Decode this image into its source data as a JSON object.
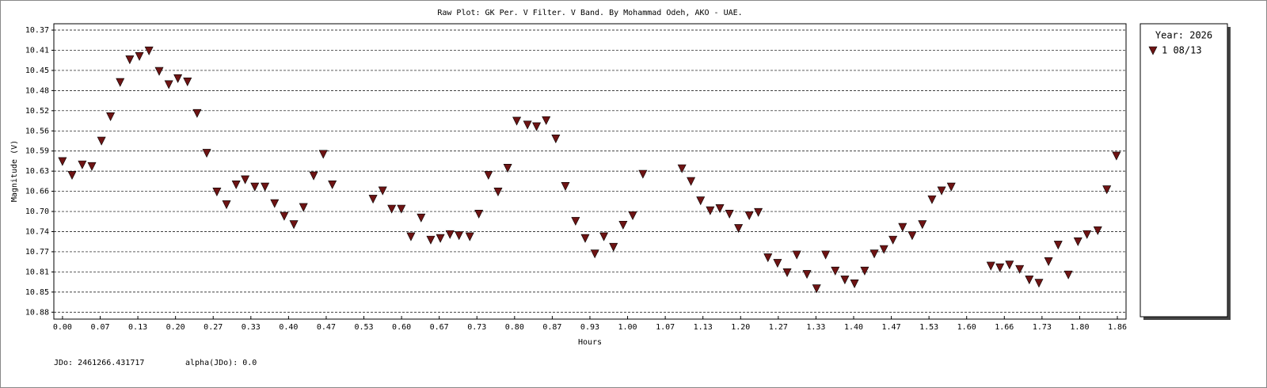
{
  "chart_data": {
    "type": "scatter",
    "title": "Raw Plot: GK Per. V Filter. V Band. By Mohammad Odeh, AKO - UAE.",
    "x_label": "Hours",
    "y_label": "Magnitude (V)",
    "legend_title": "Year: 2026",
    "legend_position": "right",
    "annotations": [
      "JDo: 2461266.431717",
      "alpha(JDo): 0.0"
    ],
    "grid": true,
    "y_inverted": true,
    "xlim": [
      -0.0152,
      1.88
    ],
    "ylim": [
      10.362,
      10.896
    ],
    "xticks": [
      {
        "value": 0.0001,
        "label": "0.00"
      },
      {
        "value": 0.0667,
        "label": "0.07"
      },
      {
        "value": 0.13328,
        "label": "0.13"
      },
      {
        "value": 0.19987,
        "label": "0.20"
      },
      {
        "value": 0.26646,
        "label": "0.27"
      },
      {
        "value": 0.33305,
        "label": "0.33"
      },
      {
        "value": 0.39964,
        "label": "0.40"
      },
      {
        "value": 0.46623,
        "label": "0.47"
      },
      {
        "value": 0.53282,
        "label": "0.53"
      },
      {
        "value": 0.59941,
        "label": "0.60"
      },
      {
        "value": 0.666,
        "label": "0.67"
      },
      {
        "value": 0.73259,
        "label": "0.73"
      },
      {
        "value": 0.79918,
        "label": "0.80"
      },
      {
        "value": 0.86577,
        "label": "0.87"
      },
      {
        "value": 0.93236,
        "label": "0.93"
      },
      {
        "value": 0.99895,
        "label": "1.00"
      },
      {
        "value": 1.06554,
        "label": "1.07"
      },
      {
        "value": 1.13213,
        "label": "1.13"
      },
      {
        "value": 1.19872,
        "label": "1.20"
      },
      {
        "value": 1.26531,
        "label": "1.27"
      },
      {
        "value": 1.3319,
        "label": "1.33"
      },
      {
        "value": 1.39849,
        "label": "1.40"
      },
      {
        "value": 1.46508,
        "label": "1.47"
      },
      {
        "value": 1.53167,
        "label": "1.53"
      },
      {
        "value": 1.59826,
        "label": "1.60"
      },
      {
        "value": 1.66485,
        "label": "1.66"
      },
      {
        "value": 1.73144,
        "label": "1.73"
      },
      {
        "value": 1.79803,
        "label": "1.80"
      },
      {
        "value": 1.86462,
        "label": "1.86"
      }
    ],
    "yticks": [
      {
        "value": 10.3735,
        "label": "10.37"
      },
      {
        "value": 10.4099,
        "label": "10.41"
      },
      {
        "value": 10.4464,
        "label": "10.45"
      },
      {
        "value": 10.4828,
        "label": "10.48"
      },
      {
        "value": 10.5192,
        "label": "10.52"
      },
      {
        "value": 10.5557,
        "label": "10.56"
      },
      {
        "value": 10.5921,
        "label": "10.59"
      },
      {
        "value": 10.6285,
        "label": "10.63"
      },
      {
        "value": 10.6649,
        "label": "10.66"
      },
      {
        "value": 10.7014,
        "label": "10.70"
      },
      {
        "value": 10.7378,
        "label": "10.74"
      },
      {
        "value": 10.7742,
        "label": "10.77"
      },
      {
        "value": 10.8107,
        "label": "10.81"
      },
      {
        "value": 10.8471,
        "label": "10.85"
      },
      {
        "value": 10.8835,
        "label": "10.88"
      }
    ],
    "series": [
      {
        "name": "1 08/13",
        "color": "#6e1414",
        "marker": "triangle-down",
        "x": [
          0.0,
          0.017,
          0.035,
          0.052,
          0.069,
          0.085,
          0.102,
          0.119,
          0.136,
          0.153,
          0.171,
          0.188,
          0.204,
          0.221,
          0.238,
          0.255,
          0.273,
          0.29,
          0.307,
          0.323,
          0.34,
          0.358,
          0.375,
          0.392,
          0.409,
          0.426,
          0.444,
          0.461,
          0.477,
          0.549,
          0.566,
          0.582,
          0.599,
          0.616,
          0.634,
          0.651,
          0.668,
          0.685,
          0.701,
          0.72,
          0.736,
          0.753,
          0.77,
          0.787,
          0.803,
          0.822,
          0.838,
          0.855,
          0.872,
          0.889,
          0.907,
          0.924,
          0.941,
          0.957,
          0.974,
          0.991,
          1.008,
          1.026,
          1.095,
          1.111,
          1.128,
          1.145,
          1.162,
          1.179,
          1.195,
          1.214,
          1.23,
          1.247,
          1.264,
          1.281,
          1.298,
          1.316,
          1.333,
          1.349,
          1.366,
          1.383,
          1.4,
          1.418,
          1.435,
          1.452,
          1.468,
          1.485,
          1.502,
          1.52,
          1.537,
          1.554,
          1.571,
          1.641,
          1.657,
          1.674,
          1.692,
          1.709,
          1.726,
          1.743,
          1.76,
          1.778,
          1.795,
          1.811,
          1.83,
          1.846,
          1.863
        ],
        "values": [
          10.611,
          10.636,
          10.617,
          10.62,
          10.574,
          10.53,
          10.468,
          10.427,
          10.421,
          10.411,
          10.448,
          10.472,
          10.461,
          10.467,
          10.524,
          10.596,
          10.666,
          10.689,
          10.653,
          10.644,
          10.657,
          10.657,
          10.687,
          10.71,
          10.725,
          10.694,
          10.637,
          10.598,
          10.653,
          10.679,
          10.664,
          10.697,
          10.697,
          10.747,
          10.713,
          10.753,
          10.75,
          10.743,
          10.745,
          10.747,
          10.706,
          10.636,
          10.666,
          10.623,
          10.538,
          10.545,
          10.548,
          10.537,
          10.57,
          10.656,
          10.719,
          10.75,
          10.778,
          10.747,
          10.766,
          10.726,
          10.709,
          10.634,
          10.624,
          10.647,
          10.682,
          10.7,
          10.696,
          10.706,
          10.732,
          10.709,
          10.703,
          10.785,
          10.795,
          10.812,
          10.78,
          10.815,
          10.841,
          10.78,
          10.809,
          10.825,
          10.832,
          10.809,
          10.778,
          10.77,
          10.753,
          10.73,
          10.745,
          10.725,
          10.68,
          10.664,
          10.657,
          10.8,
          10.803,
          10.798,
          10.806,
          10.825,
          10.831,
          10.792,
          10.762,
          10.816,
          10.756,
          10.743,
          10.736,
          10.662,
          10.601
        ]
      }
    ]
  }
}
